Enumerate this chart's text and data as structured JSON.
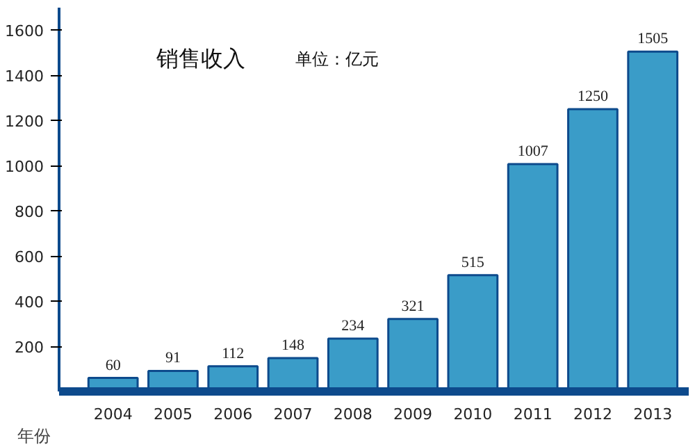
{
  "chart_data": {
    "type": "bar",
    "title": "销售收入",
    "subtitle": "单位：亿元",
    "xlabel": "年份",
    "categories": [
      "2004",
      "2005",
      "2006",
      "2007",
      "2008",
      "2009",
      "2010",
      "2011",
      "2012",
      "2013"
    ],
    "values": [
      60,
      91,
      112,
      148,
      234,
      321,
      515,
      1007,
      1250,
      1505
    ],
    "color": "#3a9cc8",
    "ylim": [
      0,
      1700
    ],
    "yticks": [
      200,
      400,
      600,
      800,
      1000,
      1200,
      1400,
      1600
    ],
    "data_labels": true,
    "grid": false
  }
}
